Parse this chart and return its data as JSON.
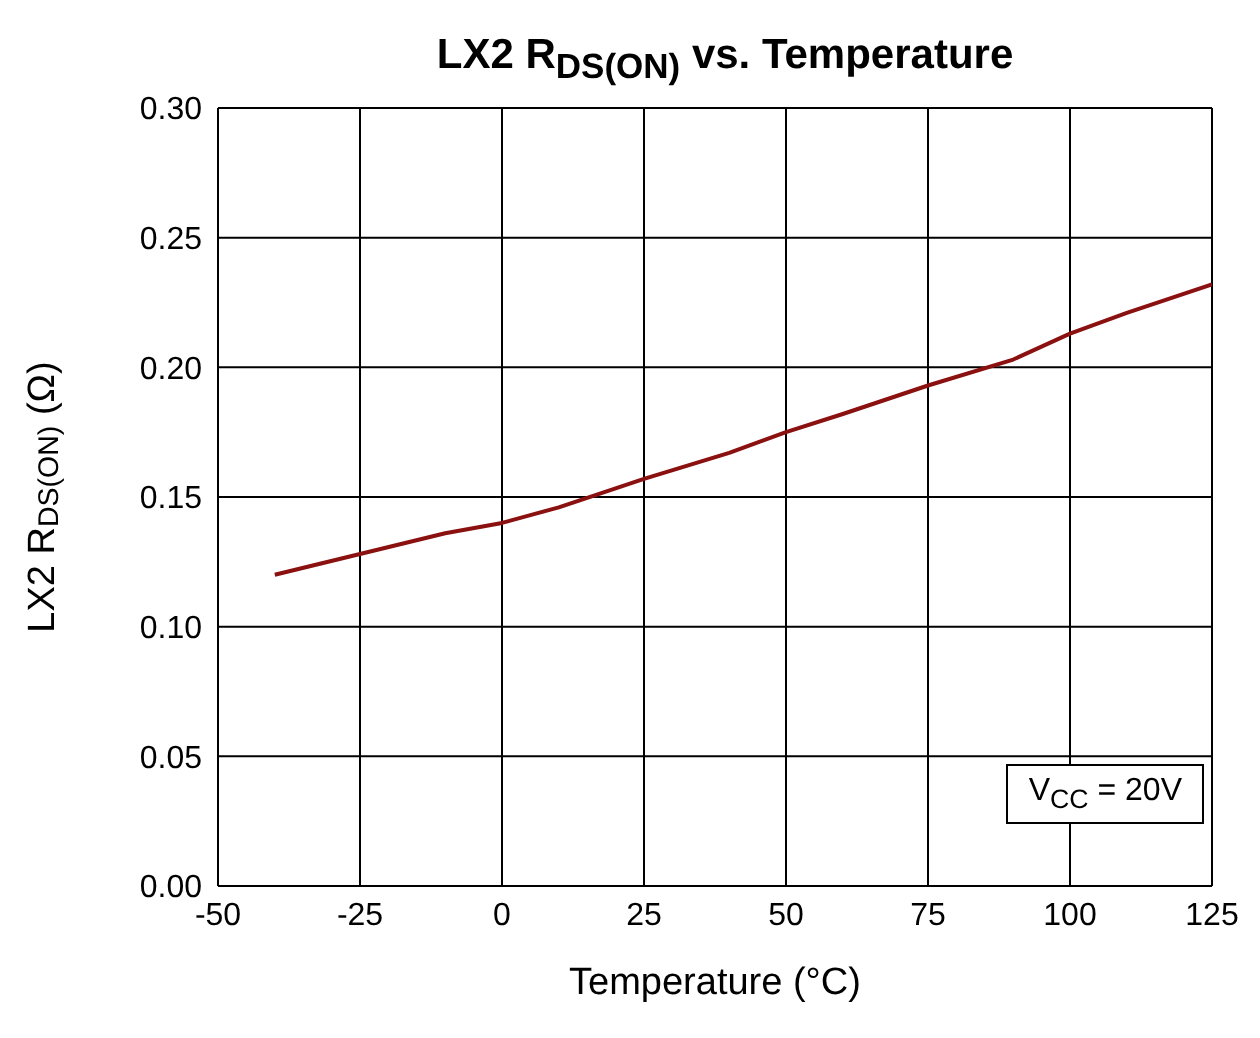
{
  "chart_data": {
    "type": "line",
    "title": "LX2 R$_{DS(ON)}$ vs. Temperature",
    "xlabel": "Temperature (°C)",
    "ylabel": "LX2 R$_{DS(ON)}$ (Ω)",
    "annotations": [
      "V$_{CC}$ = 20V"
    ],
    "x": [
      -40,
      -25,
      -10,
      0,
      10,
      25,
      40,
      50,
      60,
      75,
      90,
      100,
      110,
      125
    ],
    "series": [
      {
        "color": "#8b1010",
        "values": [
          0.12,
          0.128,
          0.136,
          0.14,
          0.146,
          0.157,
          0.167,
          0.175,
          0.182,
          0.193,
          0.203,
          0.213,
          0.221,
          0.232
        ]
      }
    ],
    "xlim": [
      -50,
      125
    ],
    "xticks": [
      -50,
      -25,
      0,
      25,
      50,
      75,
      100,
      125
    ],
    "ylim": [
      0,
      0.3
    ],
    "yticks": [
      {
        "value": 0,
        "label": "0.00"
      },
      0.05,
      {
        "value": 0.1,
        "label": "0.10"
      },
      0.15,
      {
        "value": 0.2,
        "label": "0.20"
      },
      0.25,
      {
        "value": 0.3,
        "label": "0.30"
      }
    ],
    "grid": true,
    "marker": "none",
    "line_style": "solid"
  }
}
